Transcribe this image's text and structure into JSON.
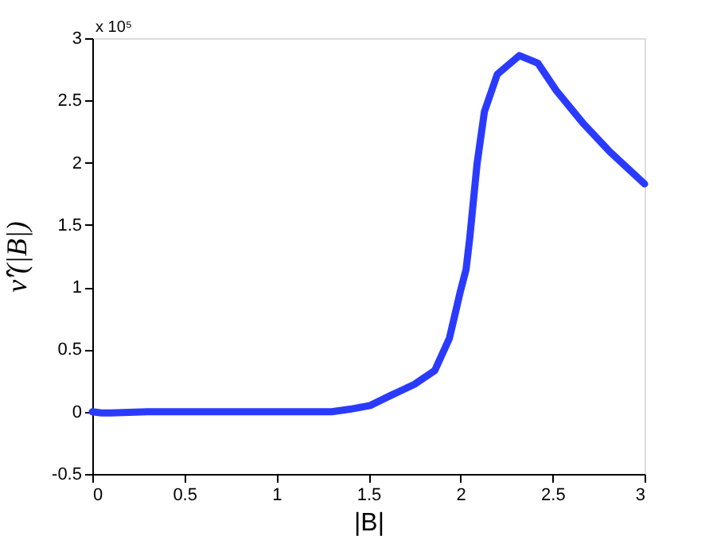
{
  "chart_data": {
    "type": "line",
    "xlabel": "|B|",
    "ylabel": "ν̂′(|B|)",
    "annotations": [
      "x 10⁵"
    ],
    "x": [
      0,
      0.05,
      0.1,
      0.3,
      0.6,
      1.0,
      1.3,
      1.4,
      1.51,
      1.62,
      1.75,
      1.86,
      1.94,
      2.0,
      2.03,
      2.05,
      2.09,
      2.13,
      2.2,
      2.32,
      2.42,
      2.52,
      2.67,
      2.81,
      3.0
    ],
    "series": [
      {
        "color": "#2a3bff",
        "values": [
          0,
          -0.01,
          -0.01,
          0,
          0,
          0,
          0,
          0.02,
          0.05,
          0.13,
          0.22,
          0.33,
          0.59,
          0.97,
          1.14,
          1.39,
          1.99,
          2.41,
          2.71,
          2.86,
          2.8,
          2.58,
          2.31,
          2.09,
          1.83
        ]
      }
    ],
    "xlim": [
      0,
      3
    ],
    "xticks": [
      0,
      0.5,
      1,
      1.5,
      2,
      2.5,
      3
    ],
    "ylim": [
      -0.5,
      3
    ],
    "yticks": [
      -0.5,
      0,
      0.5,
      1,
      1.5,
      2,
      2.5,
      3
    ],
    "grid": false,
    "marker": "none",
    "line_style": "solid"
  }
}
